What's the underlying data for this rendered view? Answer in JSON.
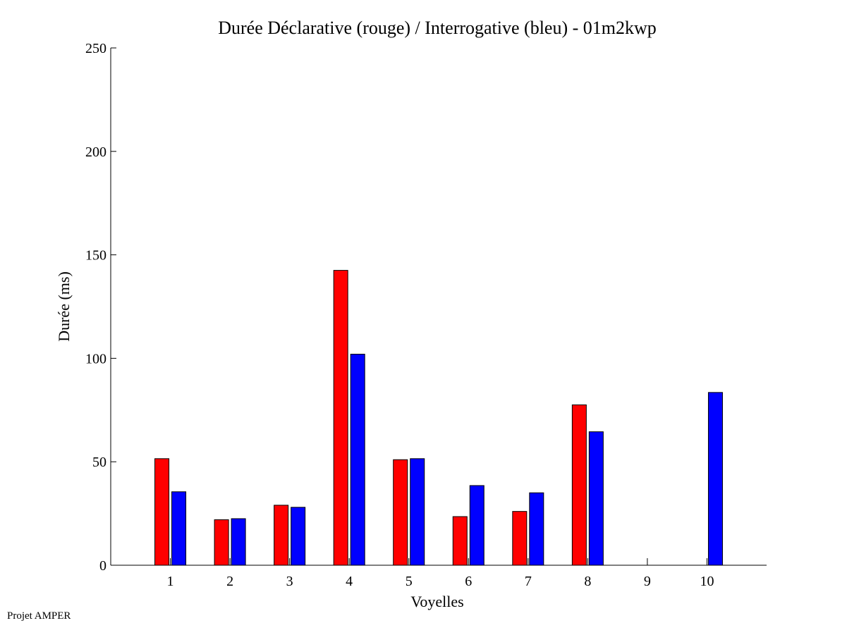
{
  "chart_data": {
    "type": "bar",
    "title": "Durée Déclarative (rouge) / Interrogative (bleu) - 01m2kwp",
    "xlabel": "Voyelles",
    "ylabel": "Durée (ms)",
    "categories": [
      "1",
      "2",
      "3",
      "4",
      "5",
      "6",
      "7",
      "8",
      "9",
      "10"
    ],
    "ylim": [
      0,
      250
    ],
    "yticks": [
      0,
      50,
      100,
      150,
      200,
      250
    ],
    "grid": false,
    "series": [
      {
        "color": "#ff0000",
        "values": [
          51.5,
          22,
          29,
          142.5,
          51,
          23.5,
          26,
          77.5,
          0,
          0
        ]
      },
      {
        "color": "#0000ff",
        "values": [
          35.5,
          22.5,
          28,
          102,
          51.5,
          38.5,
          35,
          64.5,
          0,
          83.5
        ]
      }
    ]
  },
  "footer": {
    "credit": "Projet AMPER"
  }
}
